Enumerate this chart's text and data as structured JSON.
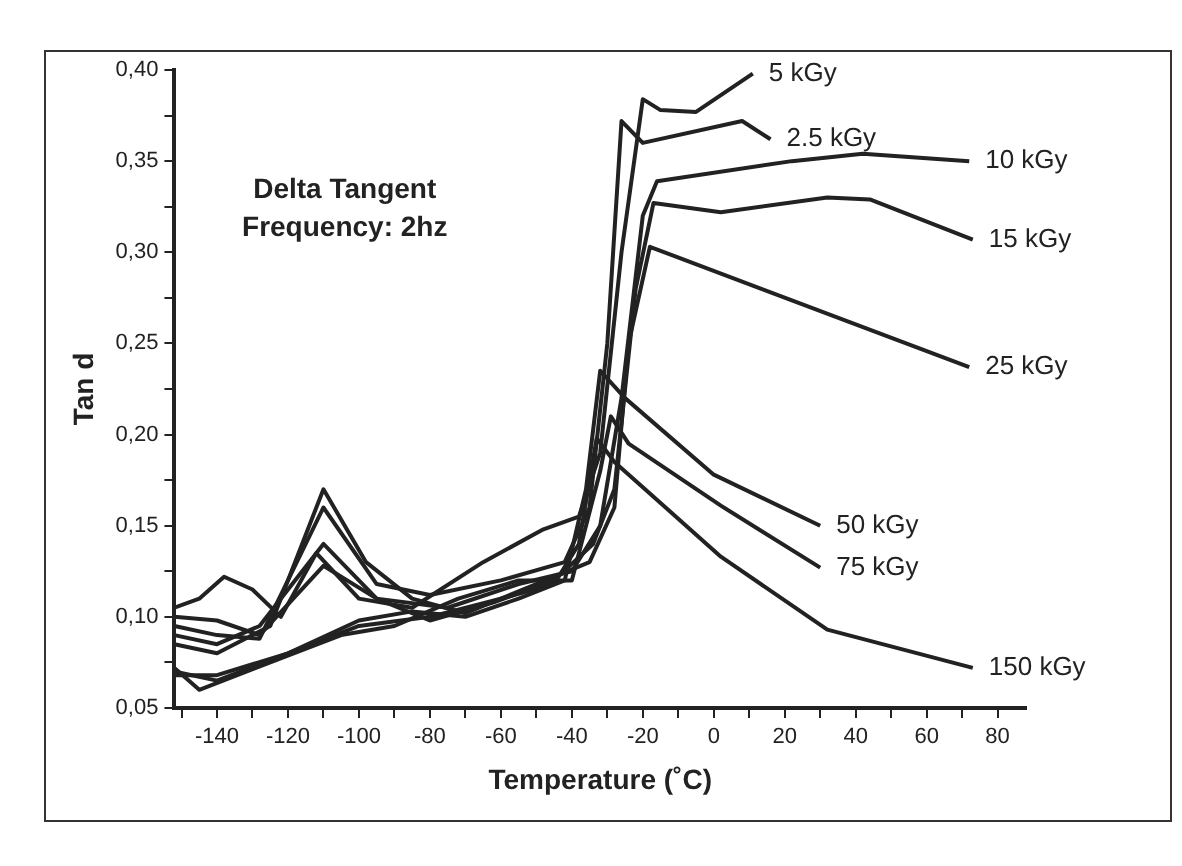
{
  "chart_data": {
    "type": "line",
    "xlabel": "Temperature (˚C)",
    "ylabel": "Tan d",
    "annotations": [
      "Delta Tangent",
      "Frequency: 2hz"
    ],
    "xlim": [
      -152,
      88
    ],
    "ylim": [
      0.05,
      0.4
    ],
    "xticks": [
      {
        "value": -150,
        "label": null
      },
      -140,
      {
        "value": -130,
        "label": null
      },
      -120,
      {
        "value": -110,
        "label": null
      },
      -100,
      {
        "value": -90,
        "label": null
      },
      -80,
      {
        "value": -70,
        "label": null
      },
      -60,
      {
        "value": -50,
        "label": null
      },
      -40,
      {
        "value": -30,
        "label": null
      },
      -20,
      {
        "value": -10,
        "label": null
      },
      0,
      {
        "value": 10,
        "label": null
      },
      20,
      {
        "value": 30,
        "label": null
      },
      40,
      {
        "value": 50,
        "label": null
      },
      60,
      {
        "value": 70,
        "label": null
      },
      80
    ],
    "yticks": [
      {
        "value": 0.05,
        "label": "0,05"
      },
      {
        "value": 0.075,
        "label": null
      },
      {
        "value": 0.1,
        "label": "0,10"
      },
      {
        "value": 0.125,
        "label": null
      },
      {
        "value": 0.15,
        "label": "0,15"
      },
      {
        "value": 0.175,
        "label": null
      },
      {
        "value": 0.2,
        "label": "0,20"
      },
      {
        "value": 0.225,
        "label": null
      },
      {
        "value": 0.25,
        "label": "0,25"
      },
      {
        "value": 0.275,
        "label": null
      },
      {
        "value": 0.3,
        "label": "0,30"
      },
      {
        "value": 0.325,
        "label": null
      },
      {
        "value": 0.35,
        "label": "0,35"
      },
      {
        "value": 0.375,
        "label": null
      },
      {
        "value": 0.4,
        "label": "0,40"
      }
    ],
    "grid": false,
    "legend": false,
    "marker": "none",
    "line_style": "solid",
    "series": [
      {
        "name": "5 kGy",
        "color": "#222222",
        "x": [
          -152,
          -145,
          -138,
          -130,
          -122,
          -112,
          -100,
          -85,
          -65,
          -48,
          -38,
          -32,
          -26,
          -20,
          -15,
          -5,
          11
        ],
        "values": [
          0.105,
          0.11,
          0.122,
          0.115,
          0.1,
          0.135,
          0.11,
          0.105,
          0.13,
          0.148,
          0.155,
          0.19,
          0.3,
          0.384,
          0.378,
          0.377,
          0.398
        ]
      },
      {
        "name": "2.5 kGy",
        "color": "#222222",
        "x": [
          -152,
          -140,
          -128,
          -110,
          -95,
          -80,
          -60,
          -42,
          -35,
          -30,
          -26,
          -20,
          8,
          16
        ],
        "values": [
          0.095,
          0.09,
          0.088,
          0.16,
          0.118,
          0.112,
          0.12,
          0.13,
          0.16,
          0.25,
          0.372,
          0.36,
          0.372,
          0.362
        ]
      },
      {
        "name": "10 kGy",
        "color": "#222222",
        "x": [
          -152,
          -140,
          -128,
          -110,
          -95,
          -75,
          -55,
          -40,
          -32,
          -26,
          -20,
          -16,
          22,
          42,
          72
        ],
        "values": [
          0.09,
          0.085,
          0.095,
          0.14,
          0.11,
          0.105,
          0.118,
          0.125,
          0.15,
          0.22,
          0.32,
          0.339,
          0.35,
          0.354,
          0.35
        ]
      },
      {
        "name": "15 kGy",
        "color": "#222222",
        "x": [
          -152,
          -140,
          -128,
          -110,
          -95,
          -80,
          -62,
          -45,
          -34,
          -28,
          -22,
          -17,
          2,
          32,
          44,
          73
        ],
        "values": [
          0.1,
          0.098,
          0.09,
          0.128,
          0.11,
          0.098,
          0.108,
          0.12,
          0.14,
          0.17,
          0.28,
          0.327,
          0.322,
          0.33,
          0.329,
          0.307
        ]
      },
      {
        "name": "25 kGy",
        "color": "#222222",
        "x": [
          -152,
          -140,
          -125,
          -110,
          -98,
          -85,
          -70,
          -50,
          -35,
          -28,
          -24,
          -18,
          72
        ],
        "values": [
          0.085,
          0.08,
          0.095,
          0.17,
          0.13,
          0.11,
          0.102,
          0.118,
          0.13,
          0.16,
          0.25,
          0.303,
          0.237
        ]
      },
      {
        "name": "50 kGy",
        "color": "#222222",
        "x": [
          -152,
          -140,
          -120,
          -100,
          -85,
          -70,
          -55,
          -42,
          -36,
          -32,
          -25,
          0,
          30
        ],
        "values": [
          0.07,
          0.065,
          0.08,
          0.098,
          0.103,
          0.1,
          0.11,
          0.12,
          0.17,
          0.235,
          0.22,
          0.178,
          0.15
        ]
      },
      {
        "name": "75 kGy",
        "color": "#222222",
        "x": [
          -152,
          -145,
          -125,
          -105,
          -90,
          -72,
          -55,
          -40,
          -32,
          -29,
          -24,
          2,
          30
        ],
        "values": [
          0.072,
          0.06,
          0.075,
          0.09,
          0.095,
          0.11,
          0.12,
          0.12,
          0.18,
          0.21,
          0.195,
          0.161,
          0.127
        ]
      },
      {
        "name": "150 kGy",
        "color": "#222222",
        "x": [
          -152,
          -140,
          -120,
          -100,
          -80,
          -60,
          -45,
          -38,
          -33,
          -28,
          2,
          32,
          73
        ],
        "values": [
          0.068,
          0.068,
          0.08,
          0.095,
          0.1,
          0.11,
          0.118,
          0.14,
          0.198,
          0.185,
          0.133,
          0.093,
          0.072
        ]
      }
    ]
  }
}
